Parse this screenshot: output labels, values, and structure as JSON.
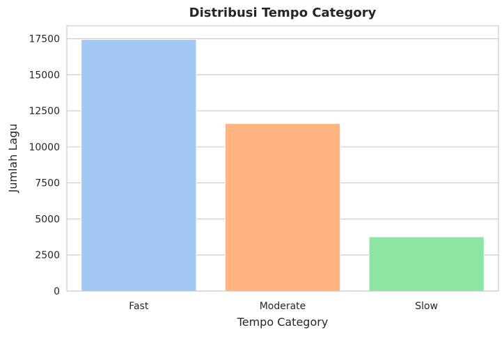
{
  "chart_data": {
    "type": "bar",
    "title": "Distribusi Tempo Category",
    "xlabel": "Tempo Category",
    "ylabel": "Jumlah Lagu",
    "categories": [
      "Fast",
      "Moderate",
      "Slow"
    ],
    "values": [
      17450,
      11620,
      3760
    ],
    "colors": [
      "#a1c9f4",
      "#ffb482",
      "#8de5a1"
    ],
    "ylim": [
      0,
      18400
    ],
    "yticks": [
      0,
      2500,
      5000,
      7500,
      10000,
      12500,
      15000,
      17500
    ],
    "ytick_labels": [
      "0",
      "2500",
      "5000",
      "7500",
      "10000",
      "12500",
      "15000",
      "17500"
    ],
    "grid": "horizontal",
    "grid_color": "#cccccc",
    "frame_color": "#cccccc"
  }
}
